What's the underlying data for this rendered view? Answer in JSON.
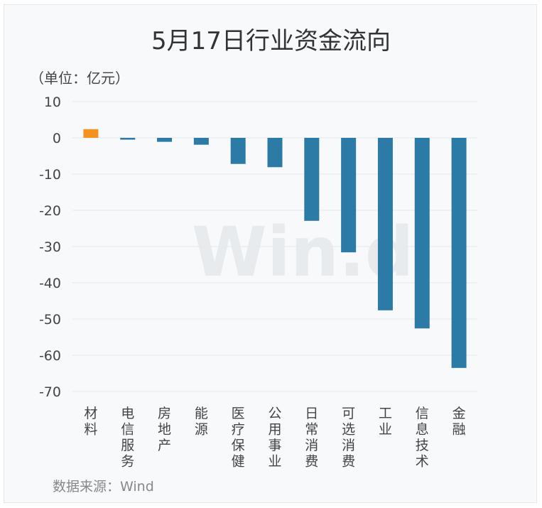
{
  "title": "5月17日行业资金流向",
  "unit": "（单位：亿元）",
  "source": "数据来源：Wind",
  "watermark": "Win.d",
  "colors": {
    "positive": "#f5911e",
    "negative": "#2c7aa6",
    "grid": "#e6e8eb"
  },
  "chart_data": {
    "type": "bar",
    "title": "5月17日行业资金流向",
    "ylabel": "（单位：亿元）",
    "xlabel": "",
    "ylim": [
      -70,
      10
    ],
    "yticks": [
      10,
      0,
      -10,
      -20,
      -30,
      -40,
      -50,
      -60,
      -70
    ],
    "grid": true,
    "categories": [
      "材料",
      "电信服务",
      "房地产",
      "能源",
      "医疗保健",
      "公用事业",
      "日常消费",
      "可选消费",
      "工业",
      "信息技术",
      "金融"
    ],
    "values": [
      2.4,
      -0.5,
      -1.1,
      -1.9,
      -7.2,
      -8.1,
      -22.9,
      -31.6,
      -47.6,
      -52.6,
      -63.5
    ]
  }
}
